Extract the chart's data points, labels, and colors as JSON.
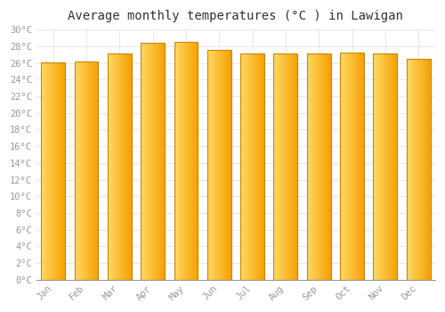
{
  "title": "Average monthly temperatures (°C ) in Lawigan",
  "months": [
    "Jan",
    "Feb",
    "Mar",
    "Apr",
    "May",
    "Jun",
    "Jul",
    "Aug",
    "Sep",
    "Oct",
    "Nov",
    "Dec"
  ],
  "values": [
    26.1,
    26.2,
    27.1,
    28.4,
    28.5,
    27.6,
    27.1,
    27.1,
    27.1,
    27.2,
    27.1,
    26.5
  ],
  "bar_color_left": "#FFD966",
  "bar_color_right": "#F5A000",
  "bar_edge_color": "#C8850A",
  "background_color": "#ffffff",
  "grid_color": "#dddddd",
  "ylim": [
    0,
    30
  ],
  "ytick_step": 2,
  "title_fontsize": 10,
  "tick_fontsize": 7.5,
  "tick_color": "#999999",
  "bar_width": 0.72
}
